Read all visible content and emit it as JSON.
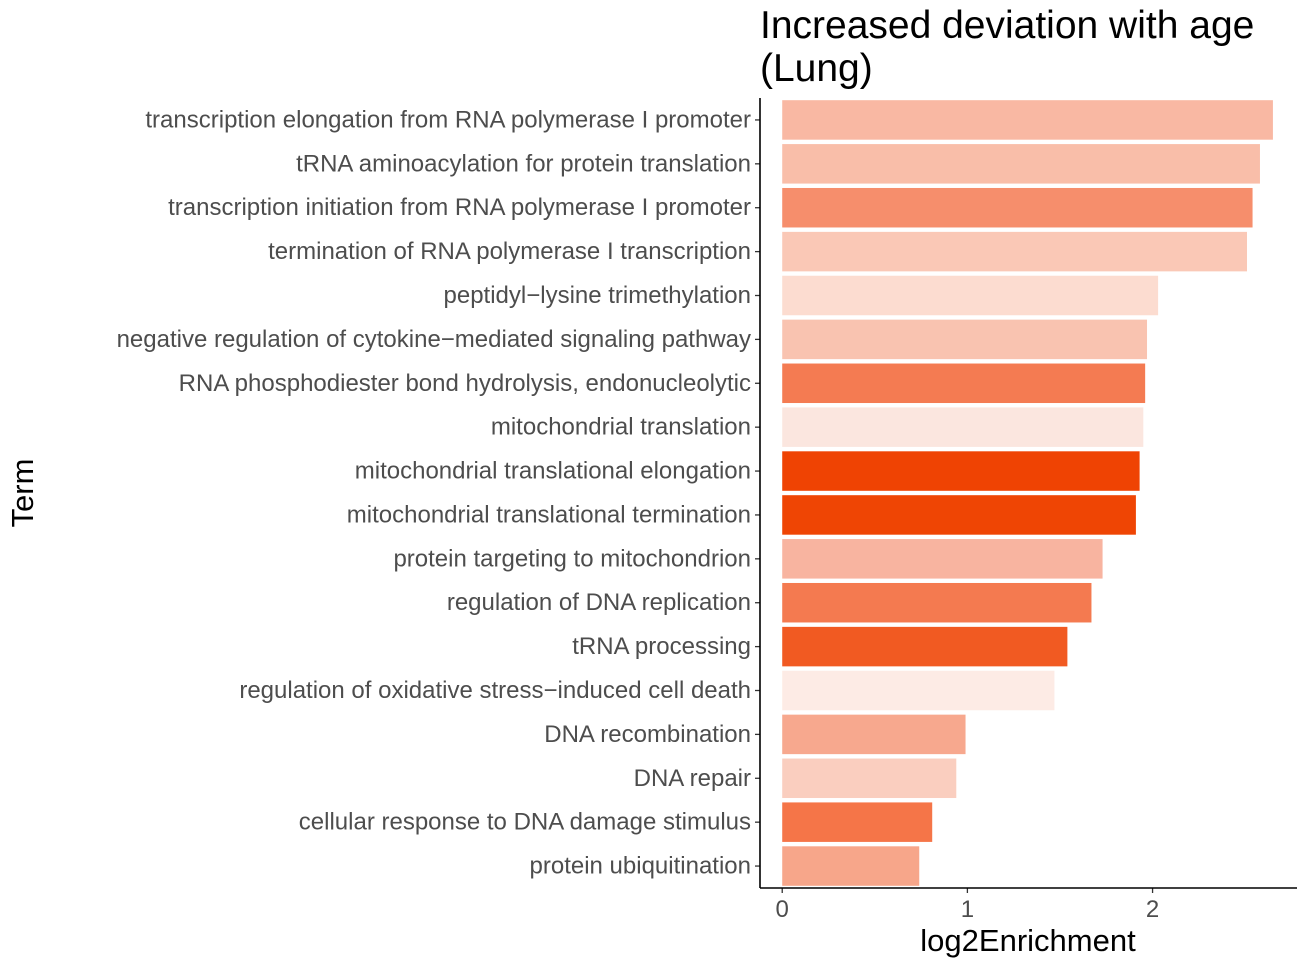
{
  "chart_data": {
    "type": "bar",
    "orientation": "horizontal",
    "title_lines": [
      "Increased deviation with age",
      "(Lung)"
    ],
    "xlabel": "log2Enrichment",
    "ylabel": "Term",
    "xlim": [
      -0.12,
      2.78
    ],
    "x_ticks": [
      0,
      1,
      2
    ],
    "grid": false,
    "legend": "none",
    "categories": [
      "transcription elongation from RNA polymerase I promoter",
      "tRNA aminoacylation for protein translation",
      "transcription initiation from RNA polymerase I promoter",
      "termination of RNA polymerase I transcription",
      "peptidyl−lysine trimethylation",
      "negative regulation of cytokine−mediated signaling pathway",
      "RNA phosphodiester bond hydrolysis, endonucleolytic",
      "mitochondrial translation",
      "mitochondrial translational elongation",
      "mitochondrial translational termination",
      "protein targeting to mitochondrion",
      "regulation of DNA replication",
      "tRNA processing",
      "regulation of oxidative stress−induced cell death",
      "DNA recombination",
      "DNA repair",
      "cellular response to DNA damage stimulus",
      "protein ubiquitination"
    ],
    "values": [
      2.65,
      2.58,
      2.54,
      2.51,
      2.03,
      1.97,
      1.96,
      1.95,
      1.93,
      1.91,
      1.73,
      1.67,
      1.54,
      1.47,
      0.99,
      0.94,
      0.81,
      0.74
    ],
    "colors": [
      "#f9b8a3",
      "#f9bea9",
      "#f68e6c",
      "#fac8b6",
      "#fcdcd0",
      "#f9c3b0",
      "#f47b52",
      "#fbe6df",
      "#ef4303",
      "#ef4504",
      "#f8b4a0",
      "#f47a50",
      "#f15a22",
      "#fdebe5",
      "#f7a88e",
      "#facebf",
      "#f57548",
      "#f7a68a"
    ]
  }
}
